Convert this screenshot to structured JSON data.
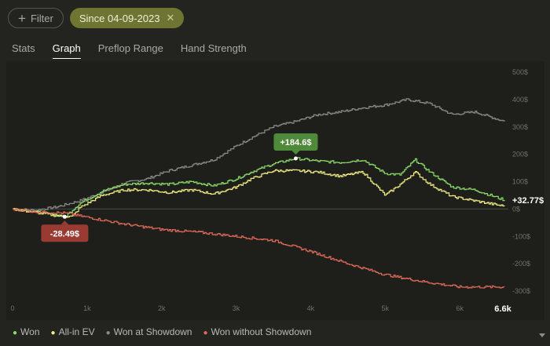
{
  "filters": {
    "filter_label": "Filter",
    "date_chip_label": "Since 04-09-2023",
    "plus_icon": "plus-icon",
    "close_icon": "close-icon"
  },
  "tabs": [
    {
      "label": "Stats"
    },
    {
      "label": "Graph"
    },
    {
      "label": "Preflop Range"
    },
    {
      "label": "Hand Strength"
    }
  ],
  "legend": [
    {
      "label": "Won",
      "color": "#8bdc6a"
    },
    {
      "label": "All-in EV",
      "color": "#f2ee84"
    },
    {
      "label": "Won at Showdown",
      "color": "#8a8a86"
    },
    {
      "label": "Won without Showdown",
      "color": "#e06a5a"
    }
  ],
  "chart_data": {
    "type": "line",
    "x_ticks": [
      "0",
      "1k",
      "2k",
      "3k",
      "4k",
      "5k",
      "6k"
    ],
    "x_end_label": "6.6k",
    "xlim": [
      0,
      6600
    ],
    "y_ticks": [
      "500$",
      "400$",
      "300$",
      "200$",
      "100$",
      "0$",
      "-100$",
      "-200$",
      "-300$"
    ],
    "ylim": [
      -300,
      500
    ],
    "annotations": {
      "max_label": "+184.6$",
      "max_point": [
        3800,
        184.6
      ],
      "min_label": "-28.49$",
      "min_point": [
        700,
        -28.49
      ],
      "end_label": "+32.77$"
    },
    "series": [
      {
        "name": "Won at Showdown",
        "color": "#8a8a86",
        "points": [
          [
            0,
            0
          ],
          [
            300,
            -5
          ],
          [
            600,
            8
          ],
          [
            900,
            30
          ],
          [
            1200,
            60
          ],
          [
            1500,
            95
          ],
          [
            1800,
            110
          ],
          [
            2100,
            140
          ],
          [
            2400,
            160
          ],
          [
            2700,
            180
          ],
          [
            3000,
            230
          ],
          [
            3200,
            260
          ],
          [
            3500,
            300
          ],
          [
            3800,
            320
          ],
          [
            4100,
            345
          ],
          [
            4400,
            355
          ],
          [
            4700,
            370
          ],
          [
            5000,
            380
          ],
          [
            5300,
            400
          ],
          [
            5600,
            385
          ],
          [
            5900,
            345
          ],
          [
            6200,
            355
          ],
          [
            6600,
            320
          ]
        ]
      },
      {
        "name": "Won",
        "color": "#8bdc6a",
        "points": [
          [
            0,
            0
          ],
          [
            300,
            -10
          ],
          [
            600,
            -22
          ],
          [
            700,
            -28.49
          ],
          [
            900,
            20
          ],
          [
            1200,
            65
          ],
          [
            1500,
            90
          ],
          [
            1800,
            95
          ],
          [
            2100,
            90
          ],
          [
            2400,
            100
          ],
          [
            2700,
            85
          ],
          [
            3000,
            110
          ],
          [
            3200,
            135
          ],
          [
            3500,
            165
          ],
          [
            3800,
            184.6
          ],
          [
            4100,
            175
          ],
          [
            4400,
            170
          ],
          [
            4700,
            180
          ],
          [
            5000,
            130
          ],
          [
            5200,
            125
          ],
          [
            5400,
            180
          ],
          [
            5600,
            135
          ],
          [
            5900,
            80
          ],
          [
            6200,
            70
          ],
          [
            6600,
            32.77
          ]
        ]
      },
      {
        "name": "All-in EV",
        "color": "#f2ee84",
        "points": [
          [
            0,
            0
          ],
          [
            300,
            -12
          ],
          [
            600,
            -25
          ],
          [
            800,
            -28
          ],
          [
            900,
            5
          ],
          [
            1200,
            50
          ],
          [
            1500,
            70
          ],
          [
            1800,
            70
          ],
          [
            2100,
            60
          ],
          [
            2400,
            70
          ],
          [
            2700,
            55
          ],
          [
            3000,
            80
          ],
          [
            3200,
            110
          ],
          [
            3500,
            140
          ],
          [
            3800,
            140
          ],
          [
            4100,
            135
          ],
          [
            4400,
            120
          ],
          [
            4700,
            135
          ],
          [
            5000,
            50
          ],
          [
            5200,
            90
          ],
          [
            5400,
            135
          ],
          [
            5600,
            90
          ],
          [
            5900,
            45
          ],
          [
            6200,
            30
          ],
          [
            6600,
            10
          ]
        ]
      },
      {
        "name": "Won without Showdown",
        "color": "#e06a5a",
        "points": [
          [
            0,
            0
          ],
          [
            300,
            -10
          ],
          [
            700,
            -15
          ],
          [
            1000,
            -30
          ],
          [
            1500,
            -55
          ],
          [
            2000,
            -75
          ],
          [
            2500,
            -85
          ],
          [
            3000,
            -100
          ],
          [
            3500,
            -115
          ],
          [
            4000,
            -155
          ],
          [
            4500,
            -200
          ],
          [
            5000,
            -240
          ],
          [
            5500,
            -265
          ],
          [
            6000,
            -285
          ],
          [
            6600,
            -285
          ]
        ]
      }
    ]
  }
}
